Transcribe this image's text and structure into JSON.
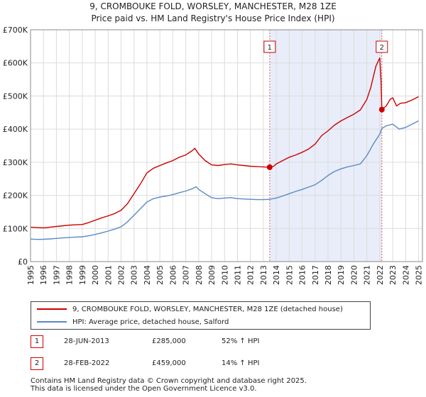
{
  "header": {
    "title": "9, CROMBOUKE FOLD, WORSLEY, MANCHESTER, M28 1ZE",
    "subtitle": "Price paid vs. HM Land Registry's House Price Index (HPI)"
  },
  "chart_data": {
    "type": "line",
    "title": "9, CROMBOUKE FOLD, WORSLEY, MANCHESTER, M28 1ZE",
    "subtitle": "Price paid vs. HM Land Registry's House Price Index (HPI)",
    "xlabel": "",
    "ylabel": "",
    "xlim": [
      1995,
      2025.3
    ],
    "ylim": [
      0,
      700000
    ],
    "y_ticks": [
      {
        "value": 0,
        "label": "£0"
      },
      {
        "value": 100000,
        "label": "£100K"
      },
      {
        "value": 200000,
        "label": "£200K"
      },
      {
        "value": 300000,
        "label": "£300K"
      },
      {
        "value": 400000,
        "label": "£400K"
      },
      {
        "value": 500000,
        "label": "£500K"
      },
      {
        "value": 600000,
        "label": "£600K"
      },
      {
        "value": 700000,
        "label": "£700K"
      }
    ],
    "x_ticks": [
      "1995",
      "1996",
      "1997",
      "1998",
      "1999",
      "2000",
      "2001",
      "2002",
      "2003",
      "2004",
      "2005",
      "2006",
      "2007",
      "2008",
      "2009",
      "2010",
      "2011",
      "2012",
      "2013",
      "2014",
      "2015",
      "2016",
      "2017",
      "2018",
      "2019",
      "2020",
      "2021",
      "2022",
      "2023",
      "2024",
      "2025"
    ],
    "grid": true,
    "shaded_region": {
      "from": 2013.49,
      "to": 2022.16
    },
    "series": [
      {
        "name": "9, CROMBOUKE FOLD, WORSLEY, MANCHESTER, M28 1ZE (detached house)",
        "color": "#cc0000",
        "points": [
          [
            1995.0,
            104000
          ],
          [
            1995.5,
            103000
          ],
          [
            1996.0,
            102000
          ],
          [
            1996.5,
            104000
          ],
          [
            1997.0,
            106000
          ],
          [
            1997.5,
            108000
          ],
          [
            1998.0,
            110000
          ],
          [
            1998.5,
            111000
          ],
          [
            1999.0,
            112000
          ],
          [
            1999.5,
            118000
          ],
          [
            2000.0,
            125000
          ],
          [
            2000.5,
            132000
          ],
          [
            2001.0,
            138000
          ],
          [
            2001.5,
            145000
          ],
          [
            2002.0,
            155000
          ],
          [
            2002.5,
            175000
          ],
          [
            2003.0,
            205000
          ],
          [
            2003.5,
            235000
          ],
          [
            2004.0,
            268000
          ],
          [
            2004.5,
            282000
          ],
          [
            2005.0,
            290000
          ],
          [
            2005.5,
            298000
          ],
          [
            2006.0,
            305000
          ],
          [
            2006.5,
            315000
          ],
          [
            2007.0,
            322000
          ],
          [
            2007.5,
            335000
          ],
          [
            2007.7,
            342000
          ],
          [
            2008.0,
            325000
          ],
          [
            2008.5,
            305000
          ],
          [
            2009.0,
            292000
          ],
          [
            2009.5,
            290000
          ],
          [
            2010.0,
            293000
          ],
          [
            2010.5,
            295000
          ],
          [
            2011.0,
            292000
          ],
          [
            2011.5,
            290000
          ],
          [
            2012.0,
            288000
          ],
          [
            2012.5,
            287000
          ],
          [
            2013.0,
            286000
          ],
          [
            2013.49,
            285000
          ],
          [
            2013.8,
            288000
          ],
          [
            2014.0,
            295000
          ],
          [
            2014.5,
            305000
          ],
          [
            2015.0,
            315000
          ],
          [
            2015.5,
            322000
          ],
          [
            2016.0,
            330000
          ],
          [
            2016.5,
            340000
          ],
          [
            2017.0,
            355000
          ],
          [
            2017.5,
            380000
          ],
          [
            2018.0,
            395000
          ],
          [
            2018.5,
            412000
          ],
          [
            2019.0,
            425000
          ],
          [
            2019.5,
            435000
          ],
          [
            2020.0,
            445000
          ],
          [
            2020.5,
            458000
          ],
          [
            2021.0,
            490000
          ],
          [
            2021.3,
            525000
          ],
          [
            2021.7,
            590000
          ],
          [
            2022.0,
            615000
          ],
          [
            2022.1,
            545000
          ],
          [
            2022.16,
            459000
          ],
          [
            2022.5,
            470000
          ],
          [
            2022.8,
            490000
          ],
          [
            2023.0,
            495000
          ],
          [
            2023.3,
            470000
          ],
          [
            2023.6,
            478000
          ],
          [
            2024.0,
            480000
          ],
          [
            2024.5,
            488000
          ],
          [
            2025.0,
            498000
          ]
        ]
      },
      {
        "name": "HPI: Average price, detached house, Salford",
        "color": "#5a8ac6",
        "points": [
          [
            1995.0,
            68000
          ],
          [
            1995.5,
            67000
          ],
          [
            1996.0,
            67500
          ],
          [
            1996.5,
            68500
          ],
          [
            1997.0,
            70000
          ],
          [
            1997.5,
            71500
          ],
          [
            1998.0,
            73000
          ],
          [
            1998.5,
            74000
          ],
          [
            1999.0,
            75000
          ],
          [
            1999.5,
            78000
          ],
          [
            2000.0,
            82000
          ],
          [
            2000.5,
            87000
          ],
          [
            2001.0,
            92000
          ],
          [
            2001.5,
            98000
          ],
          [
            2002.0,
            105000
          ],
          [
            2002.5,
            120000
          ],
          [
            2003.0,
            140000
          ],
          [
            2003.5,
            160000
          ],
          [
            2004.0,
            180000
          ],
          [
            2004.5,
            190000
          ],
          [
            2005.0,
            195000
          ],
          [
            2005.5,
            198000
          ],
          [
            2006.0,
            202000
          ],
          [
            2006.5,
            208000
          ],
          [
            2007.0,
            213000
          ],
          [
            2007.5,
            220000
          ],
          [
            2007.8,
            226000
          ],
          [
            2008.0,
            218000
          ],
          [
            2008.5,
            205000
          ],
          [
            2009.0,
            193000
          ],
          [
            2009.5,
            190000
          ],
          [
            2010.0,
            192000
          ],
          [
            2010.5,
            193000
          ],
          [
            2011.0,
            190000
          ],
          [
            2011.5,
            189000
          ],
          [
            2012.0,
            188000
          ],
          [
            2012.5,
            187000
          ],
          [
            2013.0,
            187000
          ],
          [
            2013.49,
            188000
          ],
          [
            2014.0,
            192000
          ],
          [
            2014.5,
            198000
          ],
          [
            2015.0,
            205000
          ],
          [
            2015.5,
            212000
          ],
          [
            2016.0,
            218000
          ],
          [
            2016.5,
            225000
          ],
          [
            2017.0,
            232000
          ],
          [
            2017.5,
            245000
          ],
          [
            2018.0,
            260000
          ],
          [
            2018.5,
            272000
          ],
          [
            2019.0,
            280000
          ],
          [
            2019.5,
            286000
          ],
          [
            2020.0,
            290000
          ],
          [
            2020.5,
            295000
          ],
          [
            2021.0,
            320000
          ],
          [
            2021.5,
            355000
          ],
          [
            2022.0,
            385000
          ],
          [
            2022.16,
            402000
          ],
          [
            2022.5,
            410000
          ],
          [
            2023.0,
            415000
          ],
          [
            2023.5,
            400000
          ],
          [
            2024.0,
            405000
          ],
          [
            2024.5,
            415000
          ],
          [
            2025.0,
            425000
          ]
        ]
      }
    ],
    "markers": [
      {
        "label": "1",
        "x": 2013.49,
        "y": 285000
      },
      {
        "label": "2",
        "x": 2022.16,
        "y": 459000
      }
    ]
  },
  "legend": {
    "items": [
      {
        "label": "9, CROMBOUKE FOLD, WORSLEY, MANCHESTER, M28 1ZE (detached house)",
        "color": "#cc0000"
      },
      {
        "label": "HPI: Average price, detached house, Salford",
        "color": "#5a8ac6"
      }
    ]
  },
  "transactions": [
    {
      "num": "1",
      "date": "28-JUN-2013",
      "price": "£285,000",
      "hpi": "52% ↑ HPI"
    },
    {
      "num": "2",
      "date": "28-FEB-2022",
      "price": "£459,000",
      "hpi": "14% ↑ HPI"
    }
  ],
  "footer": {
    "line1": "Contains HM Land Registry data © Crown copyright and database right 2025.",
    "line2": "This data is licensed under the Open Government Licence v3.0."
  }
}
